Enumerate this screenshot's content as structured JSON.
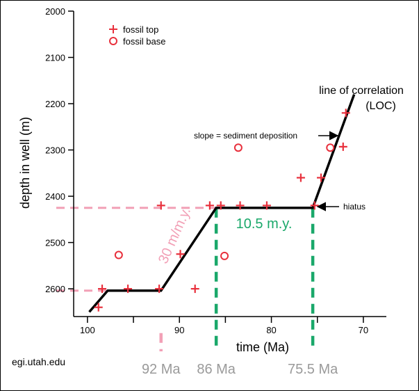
{
  "chart_data": {
    "type": "scatter",
    "xlabel": "time (Ma)",
    "ylabel": "depth in well (m)",
    "xlim": [
      101.5,
      67.5
    ],
    "ylim": [
      2000,
      2660
    ],
    "x_reversed": true,
    "y_reversed": true,
    "x_ticks": [
      100,
      95,
      90,
      85,
      80,
      75,
      70
    ],
    "x_tick_labels": [
      "100",
      "",
      "90",
      "",
      "80",
      "",
      "70"
    ],
    "y_ticks": [
      2000,
      2100,
      2200,
      2300,
      2400,
      2500,
      2600
    ],
    "y_tick_labels": [
      "2000",
      "2100",
      "2200",
      "2300",
      "2400",
      "2500",
      "2600"
    ],
    "legend": {
      "placement": "top-left",
      "entries": [
        {
          "marker": "plus",
          "label": "fossil top"
        },
        {
          "marker": "circle",
          "label": "fossil base"
        }
      ]
    },
    "series": [
      {
        "name": "fossil top",
        "marker": "plus",
        "color": "#e8303c",
        "points": [
          {
            "x": 98.8,
            "y": 2640
          },
          {
            "x": 98.4,
            "y": 2600
          },
          {
            "x": 95.6,
            "y": 2600
          },
          {
            "x": 92.2,
            "y": 2600
          },
          {
            "x": 92.0,
            "y": 2420
          },
          {
            "x": 89.9,
            "y": 2525
          },
          {
            "x": 88.3,
            "y": 2600
          },
          {
            "x": 86.7,
            "y": 2420
          },
          {
            "x": 85.5,
            "y": 2420
          },
          {
            "x": 83.4,
            "y": 2420
          },
          {
            "x": 80.5,
            "y": 2420
          },
          {
            "x": 76.8,
            "y": 2360
          },
          {
            "x": 75.3,
            "y": 2420
          },
          {
            "x": 74.6,
            "y": 2360
          },
          {
            "x": 72.2,
            "y": 2293
          },
          {
            "x": 71.9,
            "y": 2220
          }
        ]
      },
      {
        "name": "fossil base",
        "marker": "circle",
        "color": "#e8303c",
        "points": [
          {
            "x": 96.6,
            "y": 2527
          },
          {
            "x": 85.1,
            "y": 2529
          },
          {
            "x": 83.6,
            "y": 2295
          },
          {
            "x": 73.6,
            "y": 2295
          }
        ]
      }
    ],
    "loc": {
      "label_lines": [
        "line of correlation",
        "(LOC)"
      ],
      "color": "#000000",
      "points": [
        {
          "x": 99.8,
          "y": 2650
        },
        {
          "x": 97.8,
          "y": 2604
        },
        {
          "x": 92.0,
          "y": 2604
        },
        {
          "x": 86.0,
          "y": 2425
        },
        {
          "x": 75.5,
          "y": 2425
        },
        {
          "x": 71.0,
          "y": 2180
        }
      ]
    },
    "depth_guides": [
      {
        "y": 2425,
        "x_from": 101.5,
        "x_to": 86.0,
        "color": "#f2a0b6"
      },
      {
        "y": 2604,
        "x_from": 101.5,
        "x_to": 92.0,
        "color": "#f2a0b6"
      }
    ],
    "time_markers": [
      {
        "x": 92.0,
        "label": "92 Ma",
        "color": "#f2a0b6"
      },
      {
        "x": 86.0,
        "label": "86 Ma",
        "color": "#1aa86a"
      },
      {
        "x": 75.5,
        "label": "75.5 Ma",
        "color": "#1aa86a"
      }
    ],
    "annotations": {
      "slope_rate": {
        "text": "30 m/m.y.",
        "color": "#f2a0b6"
      },
      "hiatus_duration": {
        "text": "10.5 m.y.",
        "color": "#1aa86a"
      },
      "slope_note": {
        "text": "slope = sediment deposition",
        "color": "#000000",
        "points_to": {
          "x": 72.2,
          "y": 2300
        }
      },
      "hiatus_note": {
        "text": "hiatus",
        "color": "#000000",
        "points_to": {
          "x": 75.5,
          "y": 2425
        }
      }
    }
  },
  "credit": "egi.utah.edu"
}
